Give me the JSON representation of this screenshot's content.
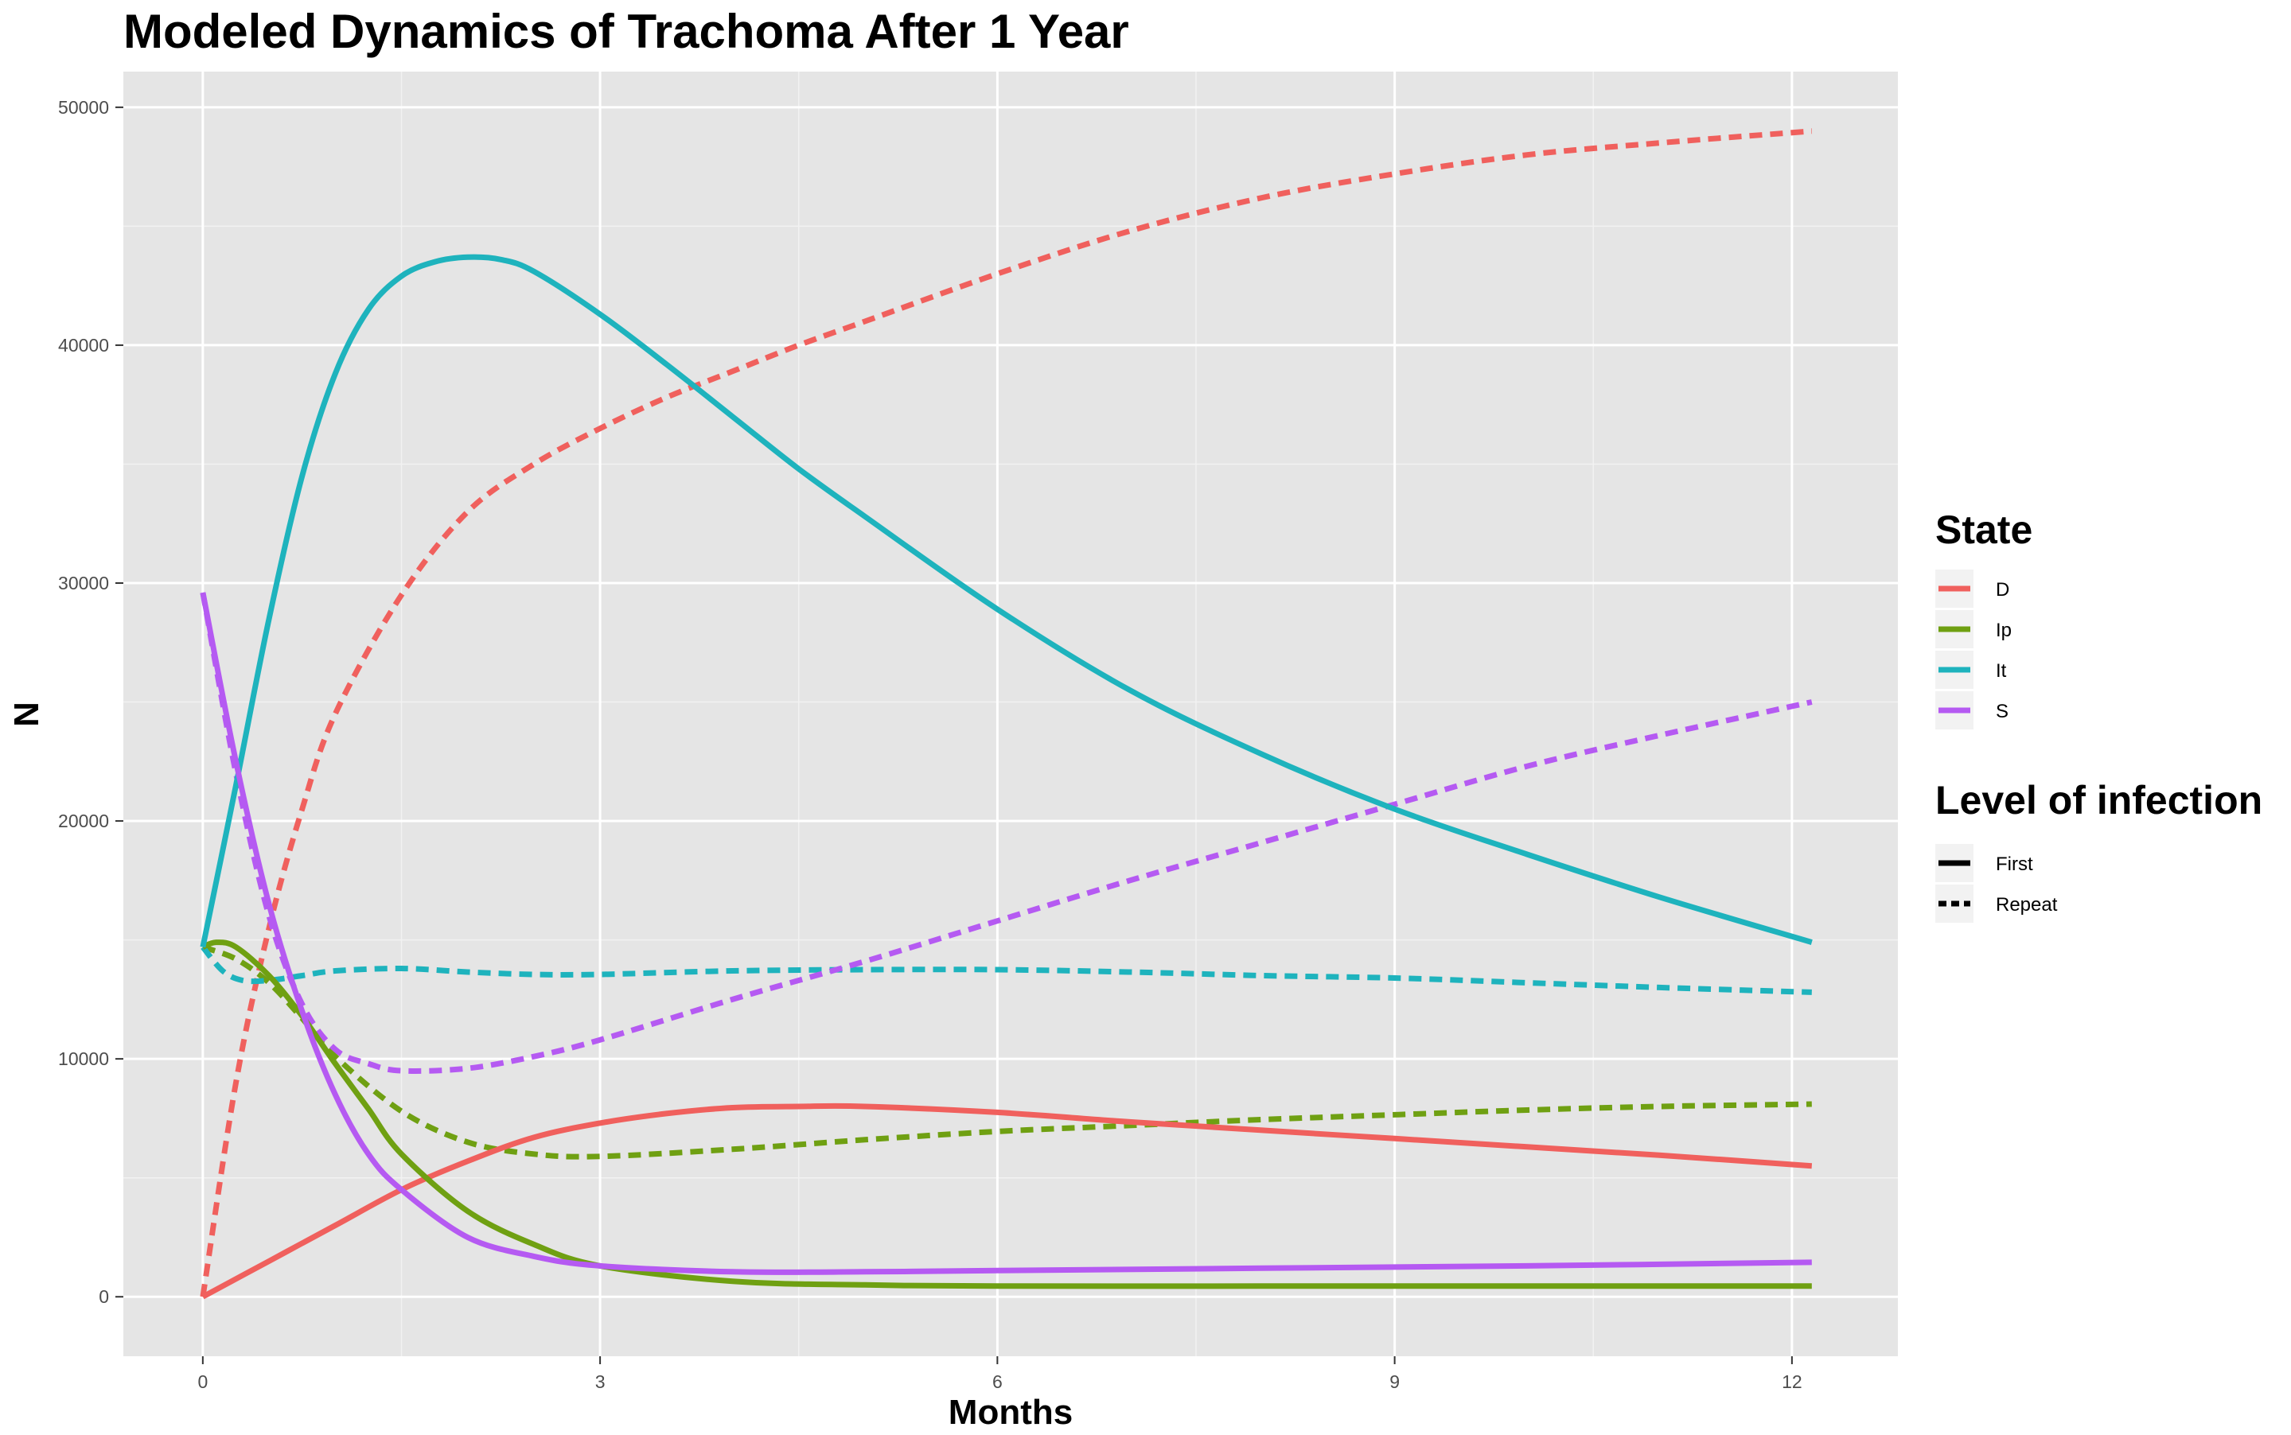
{
  "chart_data": {
    "type": "line",
    "title": "Modeled Dynamics of Trachoma After 1 Year",
    "xlabel": "Months",
    "ylabel": "N",
    "xlim": [
      -0.6,
      12.8
    ],
    "ylim": [
      -2500,
      51500
    ],
    "x_ticks": [
      0,
      3,
      6,
      9,
      12
    ],
    "y_ticks": [
      0,
      10000,
      20000,
      30000,
      40000,
      50000
    ],
    "grid": true,
    "background": "#e5e5e5",
    "legend_placement": "right",
    "legend": {
      "color_title": "State",
      "color_entries": [
        {
          "label": "D",
          "color": "#f0605d"
        },
        {
          "label": "Ip",
          "color": "#6fa012"
        },
        {
          "label": "It",
          "color": "#1eb3bd"
        },
        {
          "label": "S",
          "color": "#b55af2"
        }
      ],
      "linetype_title": "Level of infection",
      "linetype_entries": [
        {
          "label": "First",
          "dash": "solid"
        },
        {
          "label": "Repeat",
          "dash": "dashed"
        }
      ]
    },
    "series": [
      {
        "state": "D",
        "level": "First",
        "color": "#f0605d",
        "dash": "solid",
        "x": [
          0,
          0.5,
          1,
          1.5,
          2,
          2.5,
          3,
          3.5,
          4,
          4.5,
          5,
          6,
          7,
          8,
          9,
          10,
          11,
          12.15
        ],
        "y": [
          0,
          1500,
          3000,
          4500,
          5700,
          6700,
          7300,
          7700,
          7950,
          8000,
          8000,
          7750,
          7350,
          7000,
          6650,
          6300,
          5950,
          5500
        ]
      },
      {
        "state": "D",
        "level": "Repeat",
        "color": "#f0605d",
        "dash": "dashed",
        "x": [
          0,
          0.25,
          0.5,
          0.75,
          1,
          1.5,
          2,
          2.5,
          3,
          3.5,
          4,
          4.5,
          5,
          6,
          7,
          8,
          9,
          10,
          11,
          12.15
        ],
        "y": [
          0,
          9000,
          15500,
          20500,
          24500,
          29500,
          33000,
          35000,
          36500,
          37800,
          38900,
          40000,
          41000,
          43000,
          44800,
          46200,
          47200,
          48000,
          48500,
          49000
        ]
      },
      {
        "state": "Ip",
        "level": "First",
        "color": "#6fa012",
        "dash": "solid",
        "x": [
          0,
          0.1,
          0.25,
          0.5,
          0.75,
          1,
          1.25,
          1.5,
          2,
          2.5,
          3,
          4,
          5,
          6,
          8,
          10,
          12.15
        ],
        "y": [
          14700,
          14900,
          14700,
          13500,
          11800,
          9800,
          7900,
          6000,
          3600,
          2200,
          1300,
          650,
          500,
          450,
          450,
          450,
          450
        ]
      },
      {
        "state": "Ip",
        "level": "Repeat",
        "color": "#6fa012",
        "dash": "dashed",
        "x": [
          0,
          0.25,
          0.5,
          0.75,
          1,
          1.5,
          2,
          2.5,
          3,
          4,
          5,
          6,
          7,
          8,
          9,
          10,
          11,
          12.15
        ],
        "y": [
          14700,
          14200,
          13200,
          11700,
          10100,
          7800,
          6500,
          6000,
          5900,
          6200,
          6600,
          6950,
          7200,
          7450,
          7650,
          7850,
          8000,
          8100
        ]
      },
      {
        "state": "It",
        "level": "First",
        "color": "#1eb3bd",
        "dash": "solid",
        "x": [
          0,
          0.25,
          0.5,
          0.75,
          1,
          1.25,
          1.5,
          1.75,
          2,
          2.25,
          2.5,
          3,
          3.5,
          4,
          4.5,
          5,
          6,
          7,
          8,
          9,
          10,
          11,
          12.15
        ],
        "y": [
          14700,
          21500,
          28500,
          34500,
          38800,
          41500,
          42900,
          43500,
          43700,
          43600,
          43100,
          41300,
          39200,
          37000,
          34800,
          32800,
          28900,
          25500,
          22800,
          20500,
          18600,
          16800,
          14900
        ]
      },
      {
        "state": "It",
        "level": "Repeat",
        "color": "#1eb3bd",
        "dash": "dashed",
        "x": [
          0,
          0.15,
          0.3,
          0.5,
          0.75,
          1,
          1.5,
          2,
          2.5,
          3,
          4,
          5,
          6,
          7,
          8,
          9,
          10,
          11,
          12.15
        ],
        "y": [
          14700,
          13700,
          13300,
          13300,
          13500,
          13700,
          13800,
          13650,
          13550,
          13550,
          13700,
          13750,
          13750,
          13650,
          13500,
          13400,
          13200,
          13000,
          12800
        ]
      },
      {
        "state": "S",
        "level": "First",
        "color": "#b55af2",
        "dash": "solid",
        "x": [
          0,
          0.25,
          0.5,
          0.75,
          1,
          1.25,
          1.5,
          2,
          2.5,
          3,
          4,
          5,
          6,
          8,
          10,
          12.15
        ],
        "y": [
          29600,
          22500,
          16500,
          12000,
          8500,
          6000,
          4500,
          2500,
          1700,
          1300,
          1050,
          1050,
          1100,
          1200,
          1300,
          1450
        ]
      },
      {
        "state": "S",
        "level": "Repeat",
        "color": "#b55af2",
        "dash": "dashed",
        "x": [
          0,
          0.25,
          0.5,
          0.75,
          1,
          1.25,
          1.5,
          2,
          2.5,
          3,
          4,
          5,
          6,
          7,
          8,
          9,
          10,
          11,
          12.15
        ],
        "y": [
          29600,
          22000,
          16000,
          12300,
          10400,
          9800,
          9500,
          9600,
          10100,
          10800,
          12500,
          14100,
          15800,
          17500,
          19100,
          20700,
          22300,
          23600,
          25000
        ]
      }
    ]
  }
}
